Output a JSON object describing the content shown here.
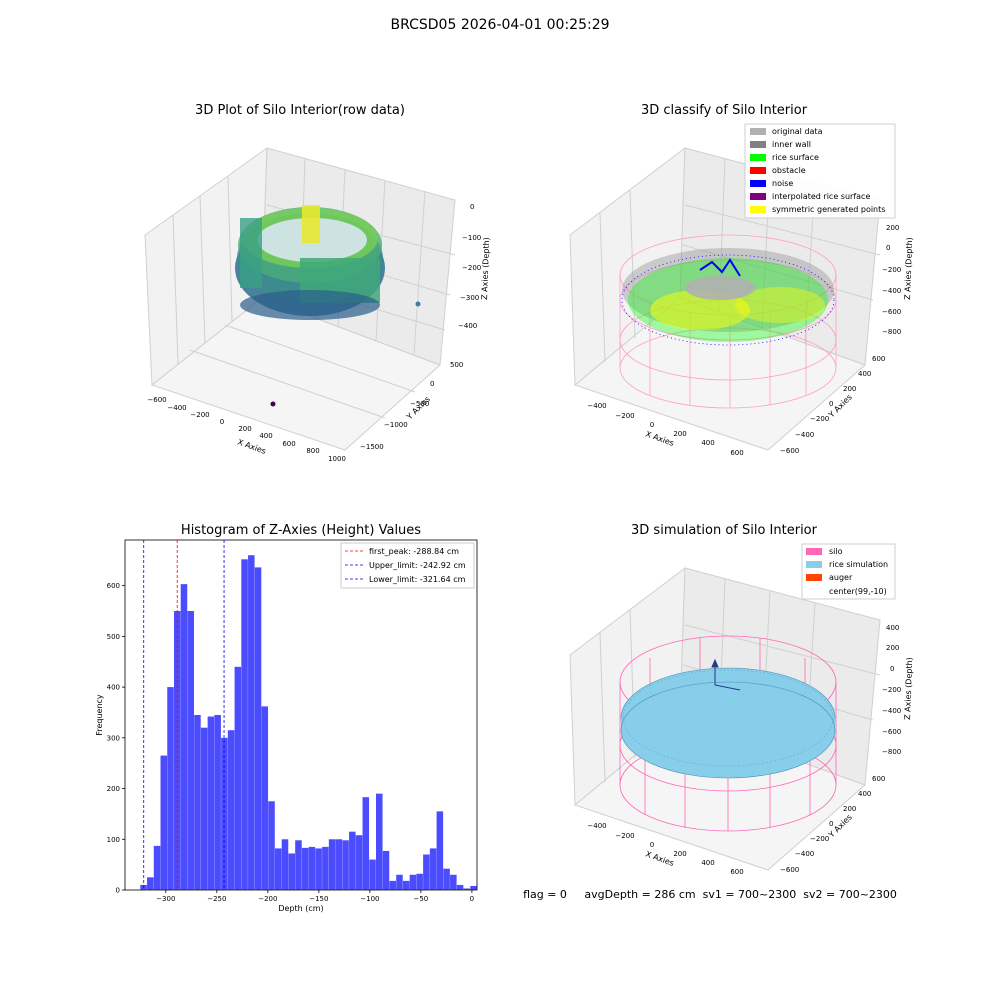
{
  "figure": {
    "suptitle": "BRCSD05 2026-04-01 00:25:29",
    "footer": "flag = 0     avgDepth = 286 cm  sv1 = 700~2300  sv2 = 700~2300"
  },
  "panels": {
    "raw": {
      "title": "3D Plot of Silo Interior(row data)",
      "xlabel": "X Axies",
      "ylabel": "Y Axies",
      "zlabel": "Z Axies (Depth)",
      "xticks": [
        "−600",
        "−400",
        "−200",
        "0",
        "200",
        "400",
        "600",
        "800",
        "1000"
      ],
      "yticks": [
        "500",
        "0",
        "−500",
        "−1000",
        "−1500"
      ],
      "zticks": [
        "0",
        "−100",
        "−200",
        "−300",
        "−400"
      ]
    },
    "classify": {
      "title": "3D classify of Silo Interior",
      "xlabel": "X Axies",
      "ylabel": "Y Axies",
      "zlabel": "Z Axies (Depth)",
      "xticks": [
        "−400",
        "−200",
        "0",
        "200",
        "400",
        "600"
      ],
      "yticks": [
        "600",
        "400",
        "200",
        "0",
        "−200",
        "−400",
        "−600"
      ],
      "zticks": [
        "200",
        "0",
        "−200",
        "−400",
        "−600",
        "−800"
      ],
      "legend": [
        {
          "label": "original data",
          "color": "#b0b0b0"
        },
        {
          "label": "inner wall",
          "color": "#808080"
        },
        {
          "label": "rice surface",
          "color": "#00ff00"
        },
        {
          "label": "obstacle",
          "color": "#ff0000"
        },
        {
          "label": "noise",
          "color": "#0000ff"
        },
        {
          "label": "interpolated rice surface",
          "color": "#800080"
        },
        {
          "label": "symmetric generated points",
          "color": "#ffff00"
        }
      ]
    },
    "simulation": {
      "title": "3D simulation of Silo Interior",
      "xlabel": "X Axies",
      "ylabel": "Y Axies",
      "zlabel": "Z Axies (Depth)",
      "xticks": [
        "−400",
        "−200",
        "0",
        "200",
        "400",
        "600"
      ],
      "yticks": [
        "600",
        "400",
        "200",
        "0",
        "−200",
        "−400",
        "−600"
      ],
      "zticks": [
        "400",
        "200",
        "0",
        "−200",
        "−400",
        "−600",
        "−800"
      ],
      "legend": [
        {
          "label": "silo",
          "color": "#ff69b4"
        },
        {
          "label": "rice simulation",
          "color": "#87ceeb"
        },
        {
          "label": "auger",
          "color": "#ff4500"
        },
        {
          "label": "center(99,-10)",
          "color": ""
        }
      ]
    }
  },
  "chart_data": {
    "type": "bar",
    "title": "Histogram of Z-Axies (Height) Values",
    "xlabel": "Depth (cm)",
    "ylabel": "Frequency",
    "xlim": [
      -340,
      5
    ],
    "ylim": [
      0,
      690
    ],
    "bar_color": "#0000ff",
    "bin_width": 6.6,
    "xticks": [
      -300,
      -250,
      -200,
      -150,
      -100,
      -50,
      0
    ],
    "yticks": [
      0,
      100,
      200,
      300,
      400,
      500,
      600
    ],
    "bins": [
      {
        "x": -325.0,
        "count": 10
      },
      {
        "x": -318.4,
        "count": 25
      },
      {
        "x": -311.8,
        "count": 87
      },
      {
        "x": -305.2,
        "count": 265
      },
      {
        "x": -298.6,
        "count": 400
      },
      {
        "x": -292.0,
        "count": 550
      },
      {
        "x": -285.4,
        "count": 603
      },
      {
        "x": -278.8,
        "count": 550
      },
      {
        "x": -272.2,
        "count": 345
      },
      {
        "x": -265.6,
        "count": 320
      },
      {
        "x": -259.0,
        "count": 342
      },
      {
        "x": -252.4,
        "count": 345
      },
      {
        "x": -245.8,
        "count": 300
      },
      {
        "x": -239.2,
        "count": 315
      },
      {
        "x": -232.6,
        "count": 440
      },
      {
        "x": -226.0,
        "count": 652
      },
      {
        "x": -219.4,
        "count": 660
      },
      {
        "x": -212.8,
        "count": 636
      },
      {
        "x": -206.2,
        "count": 362
      },
      {
        "x": -199.6,
        "count": 175
      },
      {
        "x": -193.0,
        "count": 82
      },
      {
        "x": -186.4,
        "count": 100
      },
      {
        "x": -179.8,
        "count": 72
      },
      {
        "x": -173.2,
        "count": 98
      },
      {
        "x": -166.6,
        "count": 83
      },
      {
        "x": -160.0,
        "count": 85
      },
      {
        "x": -153.4,
        "count": 82
      },
      {
        "x": -146.8,
        "count": 85
      },
      {
        "x": -140.2,
        "count": 100
      },
      {
        "x": -133.6,
        "count": 100
      },
      {
        "x": -127.0,
        "count": 98
      },
      {
        "x": -120.4,
        "count": 115
      },
      {
        "x": -113.8,
        "count": 108
      },
      {
        "x": -107.2,
        "count": 183
      },
      {
        "x": -100.6,
        "count": 60
      },
      {
        "x": -94.0,
        "count": 190
      },
      {
        "x": -87.4,
        "count": 77
      },
      {
        "x": -80.8,
        "count": 18
      },
      {
        "x": -74.2,
        "count": 30
      },
      {
        "x": -67.6,
        "count": 18
      },
      {
        "x": -61.0,
        "count": 30
      },
      {
        "x": -54.4,
        "count": 32
      },
      {
        "x": -47.8,
        "count": 70
      },
      {
        "x": -41.2,
        "count": 82
      },
      {
        "x": -34.6,
        "count": 155
      },
      {
        "x": -28.0,
        "count": 42
      },
      {
        "x": -21.4,
        "count": 30
      },
      {
        "x": -14.8,
        "count": 10
      },
      {
        "x": -8.2,
        "count": 3
      },
      {
        "x": -1.6,
        "count": 8
      }
    ],
    "vlines": [
      {
        "label": "first_peak: -288.84 cm",
        "x": -288.84,
        "color": "#ff0000"
      },
      {
        "label": "Upper_limit: -242.92 cm",
        "x": -242.92,
        "color": "#0000ff"
      },
      {
        "label": "Lower_limit: -321.64 cm",
        "x": -321.64,
        "color": "#0000ff"
      }
    ]
  }
}
